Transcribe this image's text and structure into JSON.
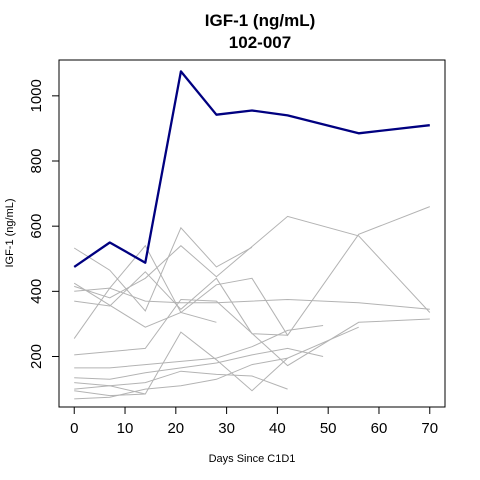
{
  "chart_data": {
    "type": "line",
    "title": "IGF-1 (ng/mL)",
    "subtitle": "102-007",
    "xlabel": "Days Since C1D1",
    "ylabel": "IGF-1 (ng/mL)",
    "xlim": [
      -3,
      73
    ],
    "ylim": [
      45,
      1110
    ],
    "xticks": [
      0,
      10,
      20,
      30,
      40,
      50,
      60,
      70
    ],
    "yticks": [
      200,
      400,
      600,
      800,
      1000
    ],
    "grid": false,
    "legend": "none",
    "colors": {
      "highlight": "#000080",
      "background_series": "#b3b3b3"
    },
    "highlighted_series": {
      "x": [
        0,
        7,
        14,
        21,
        28,
        35,
        42,
        56,
        70
      ],
      "y": [
        475,
        550,
        488,
        1075,
        942,
        955,
        940,
        885,
        910
      ]
    },
    "background_series": [
      {
        "x": [
          0,
          7,
          14,
          21,
          28,
          35
        ],
        "y": [
          533,
          465,
          340,
          595,
          475,
          535
        ]
      },
      {
        "x": [
          0,
          7,
          14,
          21,
          28,
          42,
          56,
          70
        ],
        "y": [
          415,
          380,
          440,
          540,
          445,
          630,
          570,
          335
        ]
      },
      {
        "x": [
          0,
          7,
          14,
          21,
          28,
          42,
          56,
          70
        ],
        "y": [
          400,
          410,
          370,
          365,
          365,
          375,
          365,
          345
        ]
      },
      {
        "x": [
          0,
          7,
          14,
          21,
          28
        ],
        "y": [
          255,
          410,
          540,
          335,
          305
        ]
      },
      {
        "x": [
          0,
          14,
          21,
          28,
          35,
          42,
          56,
          70
        ],
        "y": [
          425,
          290,
          335,
          420,
          440,
          265,
          575,
          660
        ]
      },
      {
        "x": [
          0,
          7,
          14,
          21,
          28,
          35,
          42
        ],
        "y": [
          370,
          355,
          460,
          345,
          440,
          270,
          265
        ]
      },
      {
        "x": [
          0,
          7,
          14,
          21,
          28,
          42,
          56,
          70
        ],
        "y": [
          205,
          215,
          225,
          375,
          370,
          172,
          305,
          315
        ]
      },
      {
        "x": [
          0,
          7,
          14,
          21,
          28,
          35,
          42,
          49
        ],
        "y": [
          165,
          165,
          175,
          185,
          195,
          230,
          280,
          295
        ]
      },
      {
        "x": [
          0,
          7,
          14,
          21,
          28,
          35,
          42,
          49
        ],
        "y": [
          135,
          130,
          150,
          165,
          180,
          205,
          225,
          200
        ]
      },
      {
        "x": [
          0,
          7,
          14,
          21,
          28,
          35,
          42
        ],
        "y": [
          120,
          110,
          120,
          155,
          145,
          140,
          100
        ]
      },
      {
        "x": [
          0,
          7,
          14,
          21,
          28,
          35,
          42
        ],
        "y": [
          95,
          80,
          85,
          275,
          190,
          95,
          195
        ]
      },
      {
        "x": [
          0,
          7,
          14,
          21,
          28,
          35,
          42,
          56
        ],
        "y": [
          70,
          75,
          100,
          110,
          130,
          175,
          195,
          290
        ]
      },
      {
        "x": [
          0,
          7,
          14
        ],
        "y": [
          100,
          110,
          85
        ]
      }
    ]
  }
}
